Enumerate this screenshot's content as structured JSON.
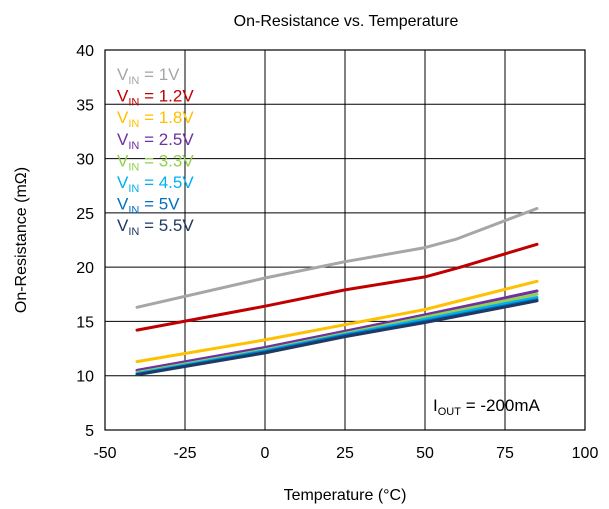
{
  "chart_data": {
    "type": "line",
    "title": "On-Resistance vs. Temperature",
    "xlabel": "Temperature (°C)",
    "ylabel": "On-Resistance (mΩ)",
    "xlim": [
      -50,
      100
    ],
    "ylim": [
      5,
      40
    ],
    "xticks": [
      -50,
      -25,
      0,
      25,
      50,
      75,
      100
    ],
    "yticks": [
      5,
      10,
      15,
      20,
      25,
      30,
      35,
      40
    ],
    "grid": true,
    "legend_position": "top-left",
    "annotation": {
      "main": "I",
      "sub": "OUT",
      "rest": " = -200mA"
    },
    "series": [
      {
        "legend_main": "V",
        "legend_sub": "IN",
        "legend_rest": " = 1V",
        "color": "#a6a6a6",
        "x": [
          -40,
          0,
          25,
          50,
          60,
          85
        ],
        "y": [
          16.3,
          19.0,
          20.5,
          21.8,
          22.6,
          25.4
        ]
      },
      {
        "legend_main": "V",
        "legend_sub": "IN",
        "legend_rest": " = 1.2V",
        "color": "#c00000",
        "x": [
          -40,
          0,
          25,
          50,
          60,
          85
        ],
        "y": [
          14.2,
          16.4,
          17.9,
          19.1,
          19.9,
          22.1
        ]
      },
      {
        "legend_main": "V",
        "legend_sub": "IN",
        "legend_rest": " = 1.8V",
        "color": "#ffc000",
        "x": [
          -40,
          0,
          25,
          50,
          85
        ],
        "y": [
          11.3,
          13.3,
          14.7,
          16.1,
          18.7
        ]
      },
      {
        "legend_main": "V",
        "legend_sub": "IN",
        "legend_rest": " = 2.5V",
        "color": "#7030a0",
        "x": [
          -40,
          0,
          25,
          50,
          85
        ],
        "y": [
          10.5,
          12.6,
          14.1,
          15.6,
          17.8
        ]
      },
      {
        "legend_main": "V",
        "legend_sub": "IN",
        "legend_rest": " = 3.3V",
        "color": "#92d050",
        "x": [
          -40,
          0,
          25,
          50,
          85
        ],
        "y": [
          10.3,
          12.4,
          13.9,
          15.4,
          17.5
        ]
      },
      {
        "legend_main": "V",
        "legend_sub": "IN",
        "legend_rest": " = 4.5V",
        "color": "#00b0f0",
        "x": [
          -40,
          0,
          25,
          50,
          85
        ],
        "y": [
          10.2,
          12.3,
          13.8,
          15.2,
          17.2
        ]
      },
      {
        "legend_main": "V",
        "legend_sub": "IN",
        "legend_rest": " = 5V",
        "color": "#0070c0",
        "x": [
          -40,
          0,
          25,
          50,
          85
        ],
        "y": [
          10.1,
          12.2,
          13.7,
          15.0,
          17.0
        ]
      },
      {
        "legend_main": "V",
        "legend_sub": "IN",
        "legend_rest": " = 5.5V",
        "color": "#1f3864",
        "x": [
          -40,
          0,
          25,
          50,
          85
        ],
        "y": [
          10.1,
          12.1,
          13.6,
          14.9,
          16.9
        ]
      }
    ]
  }
}
